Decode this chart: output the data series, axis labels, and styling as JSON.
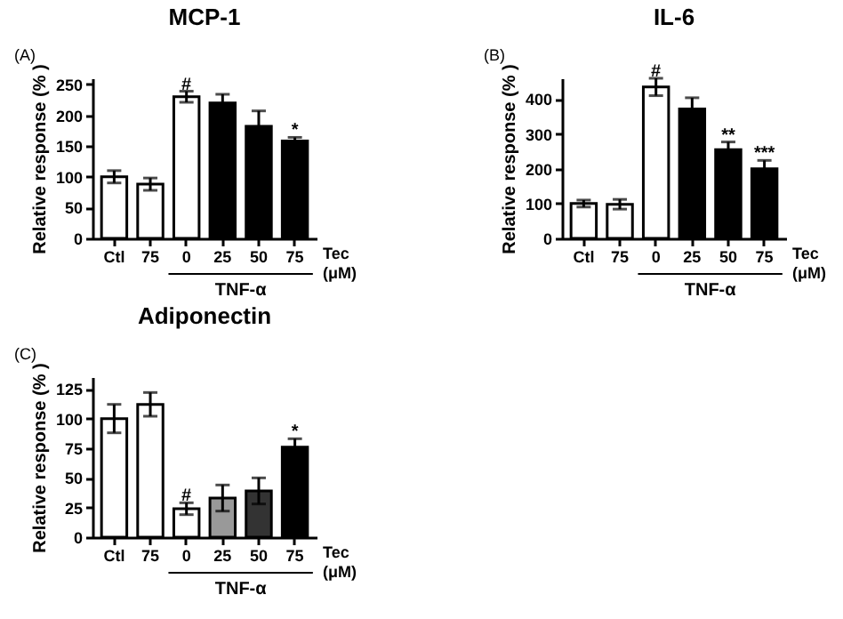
{
  "chart_data": [
    {
      "type": "bar",
      "title": "MCP-1",
      "ylabel": "Relative response (% )",
      "xlabel": "Tec (μM)",
      "categories": [
        "Ctl",
        "75",
        "0",
        "25",
        "50",
        "75"
      ],
      "values": [
        100,
        88,
        230,
        220,
        182,
        158
      ],
      "errors": [
        10,
        10,
        9,
        14,
        25,
        6
      ],
      "colors": [
        "#ffffff",
        "#ffffff",
        "#ffffff",
        "#000000",
        "#000000",
        "#000000"
      ],
      "ylim": [
        0,
        260
      ],
      "yticks": [
        0,
        50,
        100,
        150,
        200,
        250
      ],
      "annotations": [
        "(A)",
        {
          "text": "#",
          "x": "0",
          "y": 239
        },
        "*",
        "TNF-α"
      ]
    },
    {
      "type": "bar",
      "title": "IL-6",
      "ylabel": "Relative response (% )",
      "xlabel": "Tec (μM)",
      "categories": [
        "Ctl",
        "75",
        "0",
        "25",
        "50",
        "75"
      ],
      "values": [
        100,
        98,
        435,
        372,
        255,
        200
      ],
      "errors": [
        10,
        14,
        25,
        32,
        22,
        24
      ],
      "colors": [
        "#ffffff",
        "#ffffff",
        "#ffffff",
        "#000000",
        "#000000",
        "#000000"
      ],
      "ylim": [
        0,
        460
      ],
      "yticks": [
        0,
        100,
        200,
        300,
        400
      ],
      "annotations": [
        "(B)",
        {
          "text": "#",
          "x": "0",
          "y": 460
        },
        {
          "text": "**",
          "x": "50",
          "y": 277
        },
        "***",
        "TNF-α"
      ]
    },
    {
      "type": "bar",
      "title": "Adiponectin",
      "ylabel": "Relative response (% )",
      "xlabel": "Tec (μM)",
      "categories": [
        "Ctl",
        "75",
        "0",
        "25",
        "50",
        "75"
      ],
      "values": [
        100,
        112,
        24,
        33,
        39,
        76
      ],
      "errors": [
        12,
        10,
        5,
        11,
        11,
        7
      ],
      "colors": [
        "#ffffff",
        "#ffffff",
        "#ffffff",
        "#999999",
        "#333333",
        "#000000"
      ],
      "ylim": [
        0,
        135
      ],
      "yticks": [
        0,
        25,
        50,
        75,
        100,
        125
      ],
      "annotations": [
        "(C)",
        {
          "text": "#",
          "x": "0",
          "y": 29
        },
        "*",
        "TNF-α"
      ]
    }
  ]
}
